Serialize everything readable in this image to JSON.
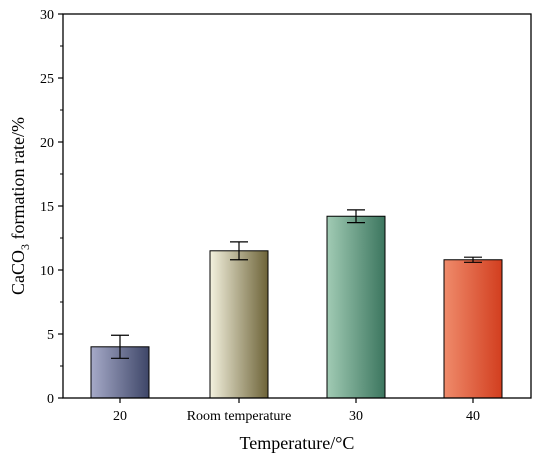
{
  "chart_data": {
    "type": "bar",
    "categories": [
      "20",
      "Room temperature",
      "30",
      "40"
    ],
    "values": [
      4.0,
      11.5,
      14.2,
      10.8
    ],
    "errors": [
      0.9,
      0.7,
      0.5,
      0.2
    ],
    "colors": [
      {
        "top": "#3e4668",
        "bottom": "#a6aac8"
      },
      {
        "top": "#6d6338",
        "bottom": "#f3f1de"
      },
      {
        "top": "#3c765f",
        "bottom": "#a1cbb4"
      },
      {
        "top": "#d23e1f",
        "bottom": "#ef8b6b"
      }
    ],
    "xlabel": "Temperature/°C",
    "ylabel": {
      "pre": "CaCO",
      "sub": "3",
      "post": " formation rate/%"
    },
    "ylim": [
      0,
      30
    ],
    "yticks": [
      0,
      5,
      10,
      15,
      20,
      25,
      30
    ],
    "grid": false
  }
}
